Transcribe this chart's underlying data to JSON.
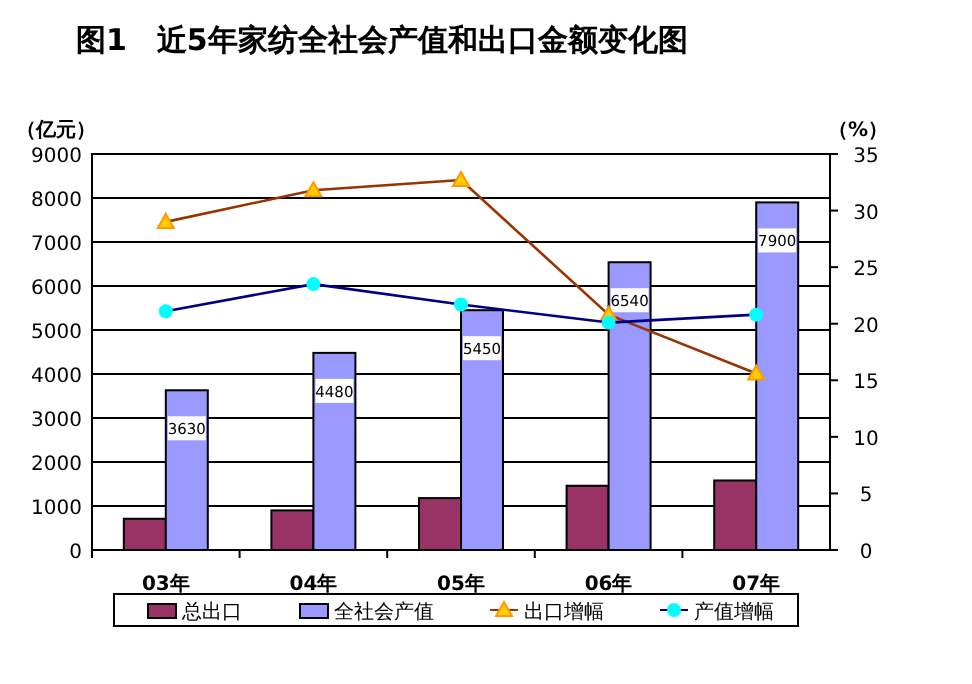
{
  "chart_data": {
    "type": "bar",
    "title": "图1　近5年家纺全社会产值和出口金额变化图",
    "ylabel": "（亿元）",
    "y2label": "（%）",
    "categories": [
      "03年",
      "04年",
      "05年",
      "06年",
      "07年"
    ],
    "series": [
      {
        "name": "总出口",
        "color": "#993366",
        "values": [
          710,
          900,
          1180,
          1460,
          1580
        ]
      },
      {
        "name": "全社会产值",
        "color": "#9999ff",
        "values": [
          3630,
          4480,
          5450,
          6540,
          7900
        ],
        "data_labels": true
      },
      {
        "name": "出口增幅",
        "type": "line",
        "axis": "y2",
        "color": "#993300",
        "marker": "triangle",
        "values": [
          29.0,
          31.8,
          32.7,
          20.8,
          15.6
        ]
      },
      {
        "name": "产值增幅",
        "type": "line",
        "axis": "y2",
        "color": "#000080",
        "marker": "circle",
        "values": [
          21.1,
          23.5,
          21.7,
          20.1,
          20.8
        ]
      }
    ],
    "ylim": [
      0,
      9000
    ],
    "yticks": [
      0,
      1000,
      2000,
      3000,
      4000,
      5000,
      6000,
      7000,
      8000,
      9000
    ],
    "y2lim": [
      0,
      35
    ],
    "y2ticks": [
      0,
      5,
      10,
      15,
      20,
      25,
      30,
      35
    ],
    "grid": "y",
    "legend": "bottom"
  }
}
